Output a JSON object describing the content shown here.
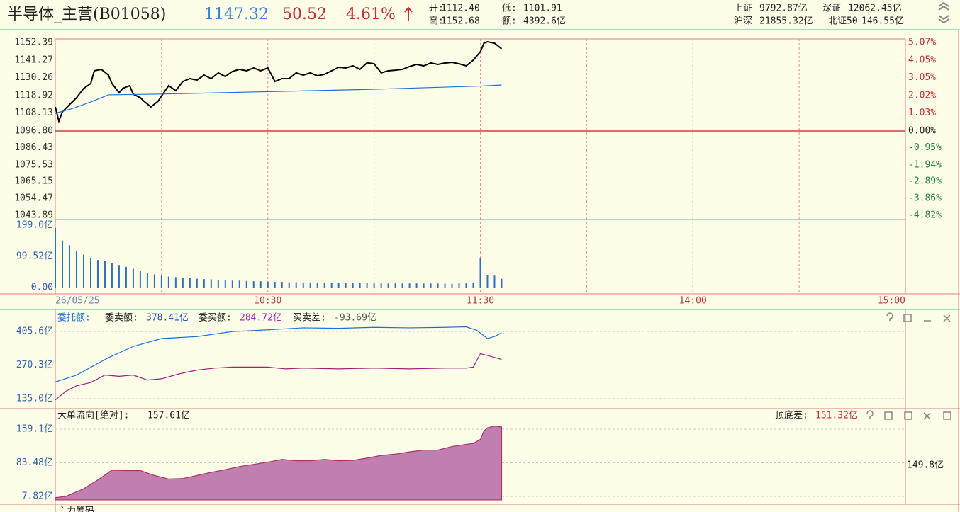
{
  "header": {
    "name": "半导体_主营(B01058)",
    "price": "1147.32",
    "change": "50.52",
    "change_pct": "4.61%",
    "open_label": "开:",
    "open": "1112.40",
    "low_label": "低:",
    "low": "1101.91",
    "high_label": "高:",
    "high": "1152.68",
    "amount_label": "额:",
    "amount": "4392.6亿",
    "idx1_label": "上证",
    "idx1": "9792.87亿",
    "idx2_label": "深证",
    "idx2": "12062.45亿",
    "idx3_label": "沪深",
    "idx3": "21855.32亿",
    "idx4_label": "北证50",
    "idx4": "146.55亿"
  },
  "order_panel": {
    "title": "委托额:",
    "sell_label": "委卖额:",
    "sell": "378.41亿",
    "buy_label": "委买额:",
    "buy": "284.72亿",
    "diff_label": "买卖差:",
    "diff": "-93.69亿"
  },
  "flow_panel": {
    "title": "大单流向[绝对]:",
    "value": "157.61亿",
    "range_label": "顶底差:",
    "range": "151.32亿",
    "right_value": "149.8亿"
  },
  "bottom_panel": {
    "title": "主力筹码"
  },
  "chart_data": [
    {
      "type": "line",
      "xlim": [
        0,
        240
      ],
      "xticks": [
        {
          "value": 0,
          "label": "26/05/25"
        },
        {
          "value": 60,
          "label": "10:30"
        },
        {
          "value": 120,
          "label": "11:30"
        },
        {
          "value": 180,
          "label": "14:00"
        },
        {
          "value": 240,
          "label": "15:00"
        }
      ],
      "xgrid": [
        30,
        60,
        90,
        120,
        150,
        180,
        210
      ],
      "ylim": [
        1041.2,
        1154.6
      ],
      "yticks": [
        1152.39,
        1141.27,
        1130.26,
        1118.92,
        1108.13,
        {
          "value": 1096.8,
          "label": "1096.80"
        },
        1086.43,
        1075.53,
        1065.15,
        1054.47,
        1043.89
      ],
      "y2lim": [
        -5.07,
        5.27
      ],
      "y2ticks": [
        {
          "value": 5.07,
          "label": "5.07%"
        },
        {
          "value": 4.05,
          "label": "4.05%"
        },
        {
          "value": 3.05,
          "label": "3.05%"
        },
        {
          "value": 2.02,
          "label": "2.02%"
        },
        {
          "value": 1.03,
          "label": "1.03%"
        },
        {
          "value": 0,
          "label": "0.00%"
        },
        {
          "value": -0.95,
          "label": "-0.95%"
        },
        {
          "value": -1.94,
          "label": "-1.94%"
        },
        {
          "value": -2.89,
          "label": "-2.89%"
        },
        {
          "value": -3.86,
          "label": "-3.86%"
        },
        {
          "value": -4.82,
          "label": "-4.82%"
        }
      ],
      "series": [
        {
          "color": "#000000",
          "x": [
            0,
            1,
            2,
            4,
            6,
            8,
            10,
            11,
            13,
            15,
            16,
            18,
            19,
            21,
            22,
            24,
            25,
            27,
            29,
            31,
            32,
            34,
            36,
            38,
            40,
            42,
            44,
            46,
            48,
            50,
            52,
            54,
            56,
            58,
            60,
            62,
            64,
            66,
            68,
            70,
            72,
            74,
            76,
            78,
            80,
            82,
            84,
            86,
            88,
            90,
            92,
            94,
            96,
            98,
            100,
            102,
            104,
            106,
            108,
            110,
            112,
            114,
            116,
            118,
            120,
            121,
            122,
            124,
            126
          ],
          "values": [
            1111.9,
            1103.0,
            1108.8,
            1113.3,
            1117.7,
            1123.5,
            1126.6,
            1134.6,
            1135.5,
            1131.9,
            1126.6,
            1120.8,
            1123.5,
            1125.3,
            1119.9,
            1117.7,
            1115.5,
            1111.9,
            1115.5,
            1122.1,
            1125.3,
            1122.1,
            1127.9,
            1129.7,
            1128.8,
            1131.9,
            1129.7,
            1133.3,
            1131.0,
            1134.2,
            1135.5,
            1134.6,
            1136.4,
            1134.6,
            1136.4,
            1127.9,
            1129.7,
            1129.7,
            1133.3,
            1131.9,
            1133.3,
            1131.5,
            1132.4,
            1134.6,
            1136.8,
            1136.4,
            1137.7,
            1135.5,
            1139.6,
            1139.0,
            1133.3,
            1134.6,
            1135.0,
            1135.5,
            1137.3,
            1138.6,
            1137.7,
            1139.5,
            1138.6,
            1139.5,
            1139.9,
            1139.0,
            1137.7,
            1141.3,
            1146.6,
            1151.9,
            1152.8,
            1151.9,
            1148.4
          ]
        },
        {
          "color": "#1e6fd9",
          "x": [
            0,
            5,
            10,
            15,
            30,
            60,
            90,
            120,
            126
          ],
          "values": [
            1107.9,
            1111.0,
            1115.0,
            1119.5,
            1120.0,
            1121.5,
            1123.0,
            1125.0,
            1125.7
          ]
        }
      ]
    },
    {
      "type": "bar",
      "xlim": [
        0,
        240
      ],
      "ylim": [
        -20.3,
        217.1
      ],
      "yticks": [
        {
          "value": 199.0,
          "label": "199.0亿"
        },
        {
          "value": 99.52,
          "label": "99.52亿"
        },
        {
          "value": 0,
          "label": "0.00"
        }
      ],
      "color": "#2f6fc0",
      "x": [
        0,
        2,
        4,
        6,
        8,
        10,
        12,
        14,
        16,
        18,
        20,
        22,
        24,
        26,
        28,
        30,
        32,
        34,
        36,
        38,
        40,
        42,
        44,
        46,
        48,
        50,
        52,
        54,
        56,
        58,
        60,
        62,
        64,
        66,
        68,
        70,
        72,
        74,
        76,
        78,
        80,
        82,
        84,
        86,
        88,
        90,
        92,
        94,
        96,
        98,
        100,
        102,
        104,
        106,
        108,
        110,
        112,
        114,
        116,
        118,
        120,
        122,
        124,
        126
      ],
      "values": [
        190,
        150,
        135,
        118,
        105,
        95,
        88,
        84,
        78,
        72,
        66,
        60,
        52,
        47,
        42,
        38,
        35,
        33,
        31,
        30,
        28,
        27,
        26,
        25,
        24,
        22,
        22,
        21,
        20,
        20,
        19,
        18,
        18,
        17,
        17,
        16,
        16,
        16,
        15,
        15,
        15,
        14,
        14,
        14,
        14,
        13,
        13,
        13,
        13,
        13,
        13,
        13,
        13,
        13,
        13,
        12,
        12,
        13,
        14,
        15,
        95,
        40,
        38,
        28
      ]
    },
    {
      "type": "line",
      "xlim": [
        0,
        240
      ],
      "ylim": [
        100.8,
        485.3
      ],
      "grid": true,
      "yticks": [
        {
          "value": 405.6,
          "label": "405.6亿"
        },
        {
          "value": 270.3,
          "label": "270.3亿"
        },
        {
          "value": 135.0,
          "label": "135.0亿"
        }
      ],
      "series": [
        {
          "color": "#1e6fd9",
          "x": [
            0,
            6,
            15,
            22,
            30,
            40,
            50,
            60,
            70,
            80,
            90,
            100,
            110,
            116,
            119,
            122,
            124,
            126
          ],
          "values": [
            202,
            230,
            300,
            345,
            377,
            385,
            405,
            412,
            420,
            418,
            422,
            420,
            422,
            424,
            410,
            377,
            385,
            400
          ]
        },
        {
          "color": "#a0207a",
          "x": [
            0,
            3,
            6,
            10,
            14,
            18,
            22,
            26,
            30,
            35,
            40,
            45,
            50,
            60,
            65,
            70,
            80,
            90,
            100,
            110,
            116,
            118,
            120,
            123,
            126
          ],
          "values": [
            130,
            165,
            187,
            200,
            230,
            225,
            230,
            210,
            215,
            235,
            250,
            258,
            262,
            262,
            255,
            258,
            255,
            258,
            255,
            258,
            258,
            262,
            316,
            305,
            293
          ]
        }
      ]
    },
    {
      "type": "area",
      "xlim": [
        0,
        240
      ],
      "ylim": [
        -6.5,
        203.7
      ],
      "grid": true,
      "yticks": [
        {
          "value": 159.1,
          "label": "159.1亿"
        },
        {
          "value": 83.48,
          "label": "83.48亿"
        },
        {
          "value": 7.82,
          "label": "7.82亿"
        }
      ],
      "color": "#c07fb0",
      "line_color": "#b03060",
      "x": [
        0,
        3,
        8,
        12,
        16,
        20,
        24,
        28,
        32,
        36,
        40,
        44,
        48,
        52,
        56,
        60,
        64,
        68,
        72,
        76,
        80,
        84,
        88,
        92,
        96,
        100,
        104,
        108,
        112,
        116,
        118,
        120,
        121,
        122,
        124,
        126
      ],
      "values": [
        5,
        8,
        25,
        45,
        67,
        66,
        66,
        55,
        47,
        48,
        55,
        62,
        68,
        75,
        80,
        85,
        91,
        88,
        88,
        91,
        88,
        89,
        94,
        100,
        103,
        108,
        112,
        112,
        120,
        125,
        127,
        136,
        155,
        162,
        166,
        164
      ]
    }
  ]
}
